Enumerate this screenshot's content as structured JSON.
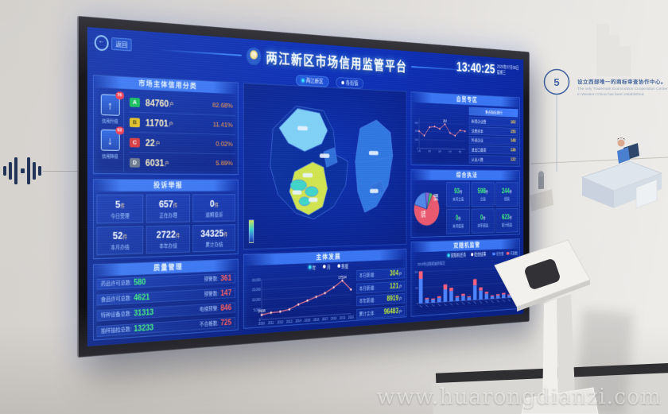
{
  "watermark": "www.huarongdianzi.com",
  "wall": {
    "step_number": "5",
    "milestone_cn": "设立西部唯一的商标审查协作中心。",
    "milestone_en_line1": "The only Trademark Examination Cooperation Center",
    "milestone_en_line2": "in Western China has been established."
  },
  "screen": {
    "back_label": "返回",
    "header": {
      "title": "两江新区市场信用监管平台",
      "time": "13:40:25",
      "date": "2020年07月08日",
      "weekday": "星期三"
    },
    "tabs": [
      {
        "label": "两江新区"
      },
      {
        "label": "各街镇"
      }
    ],
    "credit": {
      "title": "市场主体信用分类",
      "up_badge": "76",
      "up_label": "信用升级",
      "down_badge": "63",
      "down_label": "信用降级",
      "rows": [
        {
          "grade": "A",
          "count": "84760",
          "unit": "户",
          "pct": "82.68%"
        },
        {
          "grade": "B",
          "count": "11701",
          "unit": "户",
          "pct": "11.41%"
        },
        {
          "grade": "C",
          "count": "22",
          "unit": "户",
          "pct": "0.02%"
        },
        {
          "grade": "D",
          "count": "6031",
          "unit": "户",
          "pct": "5.89%"
        }
      ]
    },
    "complaints": {
      "title": "投诉举报",
      "cells": [
        {
          "value": "5",
          "unit": "件",
          "label": "今日受理"
        },
        {
          "value": "657",
          "unit": "件",
          "label": "正在办理"
        },
        {
          "value": "0",
          "unit": "件",
          "label": "逾期投诉"
        },
        {
          "value": "52",
          "unit": "件",
          "label": "本月办结"
        },
        {
          "value": "2722",
          "unit": "件",
          "label": "本年办结"
        },
        {
          "value": "34325",
          "unit": "件",
          "label": "累计办结"
        }
      ]
    },
    "quality": {
      "title": "质量管理",
      "rows": [
        {
          "left_label": "药品许可总数:",
          "left_value": "580",
          "right_label": "预警数:",
          "right_value": "361"
        },
        {
          "left_label": "食品许可总数:",
          "left_value": "4621",
          "right_label": "预警数:",
          "right_value": "147"
        },
        {
          "left_label": "特种设备总数:",
          "left_value": "31313",
          "right_label": "电梯预警:",
          "right_value": "846"
        },
        {
          "left_label": "抽样抽检总数:",
          "left_value": "13233",
          "right_label": "不合格数:",
          "right_value": "725"
        }
      ]
    },
    "development": {
      "title": "主体发展",
      "legend": [
        "年",
        "月",
        "季度"
      ],
      "stats": [
        {
          "label": "本日新增:",
          "value": "304",
          "unit": "户"
        },
        {
          "label": "本月新增:",
          "value": "121",
          "unit": "户"
        },
        {
          "label": "本年新增:",
          "value": "8919",
          "unit": "户"
        },
        {
          "label": "累计主体:",
          "value": "96483",
          "unit": "户"
        }
      ]
    },
    "ftz": {
      "title": "自贸专区",
      "list_header": "重点指标排行",
      "list": [
        {
          "label": "新增企业数",
          "value": "162"
        },
        {
          "label": "注册资本",
          "value": "153"
        },
        {
          "label": "外资企业",
          "value": "148"
        },
        {
          "label": "进出口备案",
          "value": "136"
        },
        {
          "label": "从业人数",
          "value": "122"
        }
      ]
    },
    "enforcement": {
      "title": "综合执法",
      "cells": [
        {
          "value": "93",
          "unit": "件",
          "label": "本月立案"
        },
        {
          "value": "598",
          "unit": "件",
          "label": "立案"
        },
        {
          "value": "244",
          "unit": "件",
          "label": "结案"
        },
        {
          "value": "0",
          "unit": "件",
          "label": "本月结案"
        },
        {
          "value": "0",
          "unit": "件",
          "label": "本年结案"
        },
        {
          "value": "623",
          "unit": "件",
          "label": "累计结案"
        }
      ]
    },
    "random": {
      "title": "双随机监管",
      "tabs": [
        "双随机任务",
        "检查结果"
      ],
      "note": "2019年双随机抽查情况"
    }
  },
  "colors": {
    "accent": "#2e62e8",
    "grade_a": "#10c050",
    "grade_b": "#e8c118",
    "grade_c": "#e03030",
    "grade_d": "#6a7486",
    "good": "#3ef07a",
    "warn": "#ff5a5a",
    "pct_orange": "#ff9a3d",
    "line_pink": "#ff7b8e",
    "bar_blue": "#4a82ff",
    "bar_red": "#ff5f7a"
  },
  "chart_data": [
    {
      "id": "dev",
      "type": "line",
      "title": "主体发展",
      "x": [
        "2010",
        "2011",
        "2012",
        "2013",
        "2014",
        "2015",
        "2016",
        "2017",
        "2018",
        "2019",
        "2020"
      ],
      "values": [
        2408,
        3150,
        3420,
        4260,
        6480,
        8150,
        9850,
        11520,
        14230,
        17534,
        12620
      ],
      "ylim": [
        0,
        20000
      ],
      "yticks": [
        0,
        5000,
        10000,
        15000,
        20000
      ],
      "point_labels": {
        "0": "2408",
        "9": "17534"
      },
      "line_color": "#ff7b8e"
    },
    {
      "id": "ftz",
      "type": "line",
      "title": "自贸专区",
      "x": [
        "1月",
        "2月",
        "3月",
        "4月",
        "5月",
        "6月",
        "7月",
        "8月",
        "9月",
        "10月"
      ],
      "values": [
        200,
        150,
        250,
        260,
        235,
        292,
        190,
        160,
        225,
        215
      ],
      "ylim": [
        0,
        350
      ],
      "yticks": [
        0,
        100,
        200,
        300
      ],
      "point_labels": {
        "5": "292"
      },
      "line_color": "#ff7b8e"
    },
    {
      "id": "pie",
      "type": "pie",
      "title": "综合执法",
      "slices": [
        {
          "label": "立案 72%",
          "value": 72,
          "color": "#e8576e"
        },
        {
          "label": "结案 19%",
          "value": 19,
          "color": "#4f86e8"
        },
        {
          "label": "",
          "value": 5,
          "color": "#8a5fd0"
        },
        {
          "label": "",
          "value": 4,
          "color": "#49c26b"
        }
      ]
    },
    {
      "id": "random",
      "type": "bar-stacked",
      "title": "双随机监管",
      "series": [
        {
          "name": "任务数",
          "color": "#4a82ff",
          "values": [
            78,
            12,
            10,
            14,
            40,
            34,
            12,
            16,
            10,
            48,
            30,
            18,
            8,
            10,
            12,
            8,
            14
          ]
        },
        {
          "name": "问题数",
          "color": "#ff5f7a",
          "values": [
            24,
            4,
            3,
            5,
            16,
            10,
            4,
            6,
            3,
            20,
            10,
            6,
            3,
            4,
            5,
            3,
            5
          ]
        }
      ],
      "ylim": [
        0,
        110
      ],
      "yticks": [
        0,
        50,
        100
      ]
    }
  ]
}
